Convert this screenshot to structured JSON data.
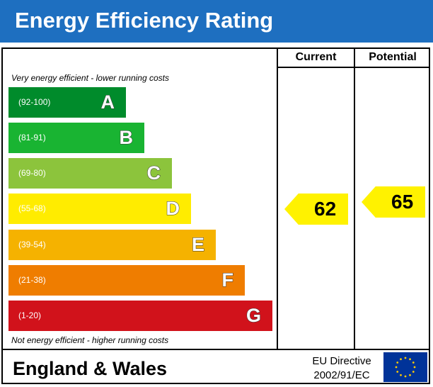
{
  "title": "Energy Efficiency Rating",
  "columns": {
    "current": "Current",
    "potential": "Potential"
  },
  "notes": {
    "top": "Very energy efficient - lower running costs",
    "bottom": "Not energy efficient - higher running costs"
  },
  "chart_data": {
    "type": "bar",
    "title": "Energy Efficiency Rating",
    "bands": [
      {
        "letter": "A",
        "range": "(92-100)",
        "color": "#008b2b"
      },
      {
        "letter": "B",
        "range": "(81-91)",
        "color": "#19b432"
      },
      {
        "letter": "C",
        "range": "(69-80)",
        "color": "#8cc43c"
      },
      {
        "letter": "D",
        "range": "(55-68)",
        "color": "#ffec00"
      },
      {
        "letter": "E",
        "range": "(39-54)",
        "color": "#f5b200"
      },
      {
        "letter": "F",
        "range": "(21-38)",
        "color": "#ef7d00"
      },
      {
        "letter": "G",
        "range": "(1-20)",
        "color": "#d1121b"
      }
    ],
    "current": {
      "value": 62,
      "band": "D"
    },
    "potential": {
      "value": 65,
      "band": "D"
    },
    "arrow_color": "#fff200"
  },
  "footer": {
    "region": "England & Wales",
    "directive_line1": "EU Directive",
    "directive_line2": "2002/91/EC"
  },
  "colors": {
    "header": "#1e6fc0",
    "eu_flag": "#003399",
    "eu_stars": "#ffcc00"
  }
}
